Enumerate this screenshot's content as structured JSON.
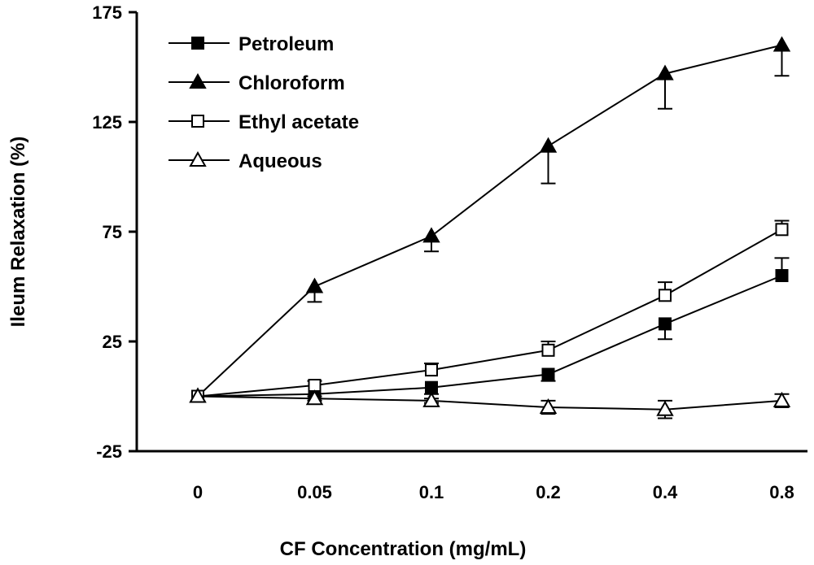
{
  "chart_data": {
    "type": "line",
    "xlabel": "CF Concentration (mg/mL)",
    "ylabel": "Ileum Relaxation (%)",
    "categories": [
      "0",
      "0.05",
      "0.1",
      "0.2",
      "0.4",
      "0.8"
    ],
    "ylim": [
      -25,
      175
    ],
    "yticks": [
      -25,
      25,
      75,
      125,
      175
    ],
    "grid": false,
    "legend_position": "top-left",
    "series": [
      {
        "name": "Petroleum",
        "marker": "square-filled",
        "values": [
          0,
          1,
          4,
          10,
          33,
          55
        ],
        "errors": [
          0,
          2,
          3,
          3,
          7,
          8
        ]
      },
      {
        "name": "Chloroform",
        "marker": "triangle-filled",
        "values": [
          0,
          50,
          73,
          114,
          147,
          160
        ],
        "errors": [
          0,
          7,
          7,
          17,
          16,
          14
        ]
      },
      {
        "name": "Ethyl acetate",
        "marker": "square-open",
        "values": [
          0,
          5,
          12,
          21,
          46,
          76
        ],
        "errors": [
          0,
          2,
          3,
          4,
          6,
          4
        ]
      },
      {
        "name": "Aqueous",
        "marker": "triangle-open",
        "values": [
          0,
          -1,
          -2,
          -5,
          -6,
          -2
        ],
        "errors": [
          0,
          1,
          1,
          3,
          4,
          3
        ]
      }
    ]
  }
}
